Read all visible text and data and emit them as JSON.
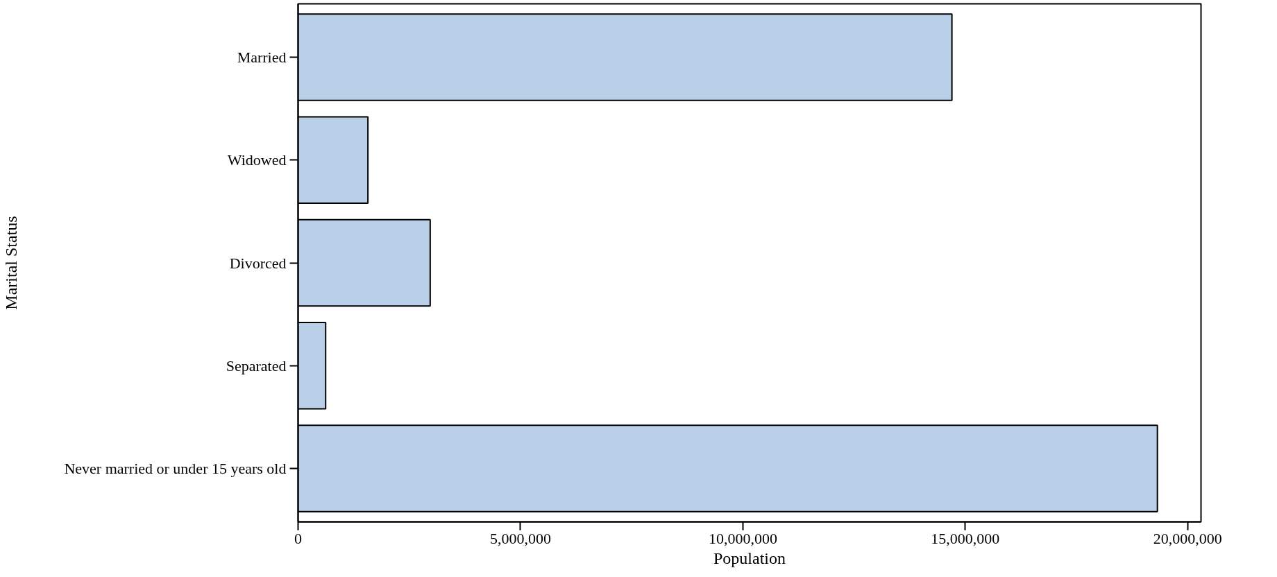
{
  "chart_data": {
    "type": "bar",
    "orientation": "horizontal",
    "xlabel": "Population",
    "ylabel": "Marital Status",
    "categories": [
      "Married",
      "Widowed",
      "Divorced",
      "Separated",
      "Never married or under 15 years old"
    ],
    "values": [
      14700000,
      1570000,
      2970000,
      620000,
      19320000
    ],
    "color": "#b9cfe7",
    "xlim": [
      0,
      20300000
    ],
    "xticks": [
      0,
      {
        "value": 5000000,
        "label": "5,000,000"
      },
      {
        "value": 10000000,
        "label": "10,000,000"
      },
      {
        "value": 15000000,
        "label": "15,000,000"
      },
      {
        "value": 20000000,
        "label": "20,000,000"
      }
    ]
  }
}
